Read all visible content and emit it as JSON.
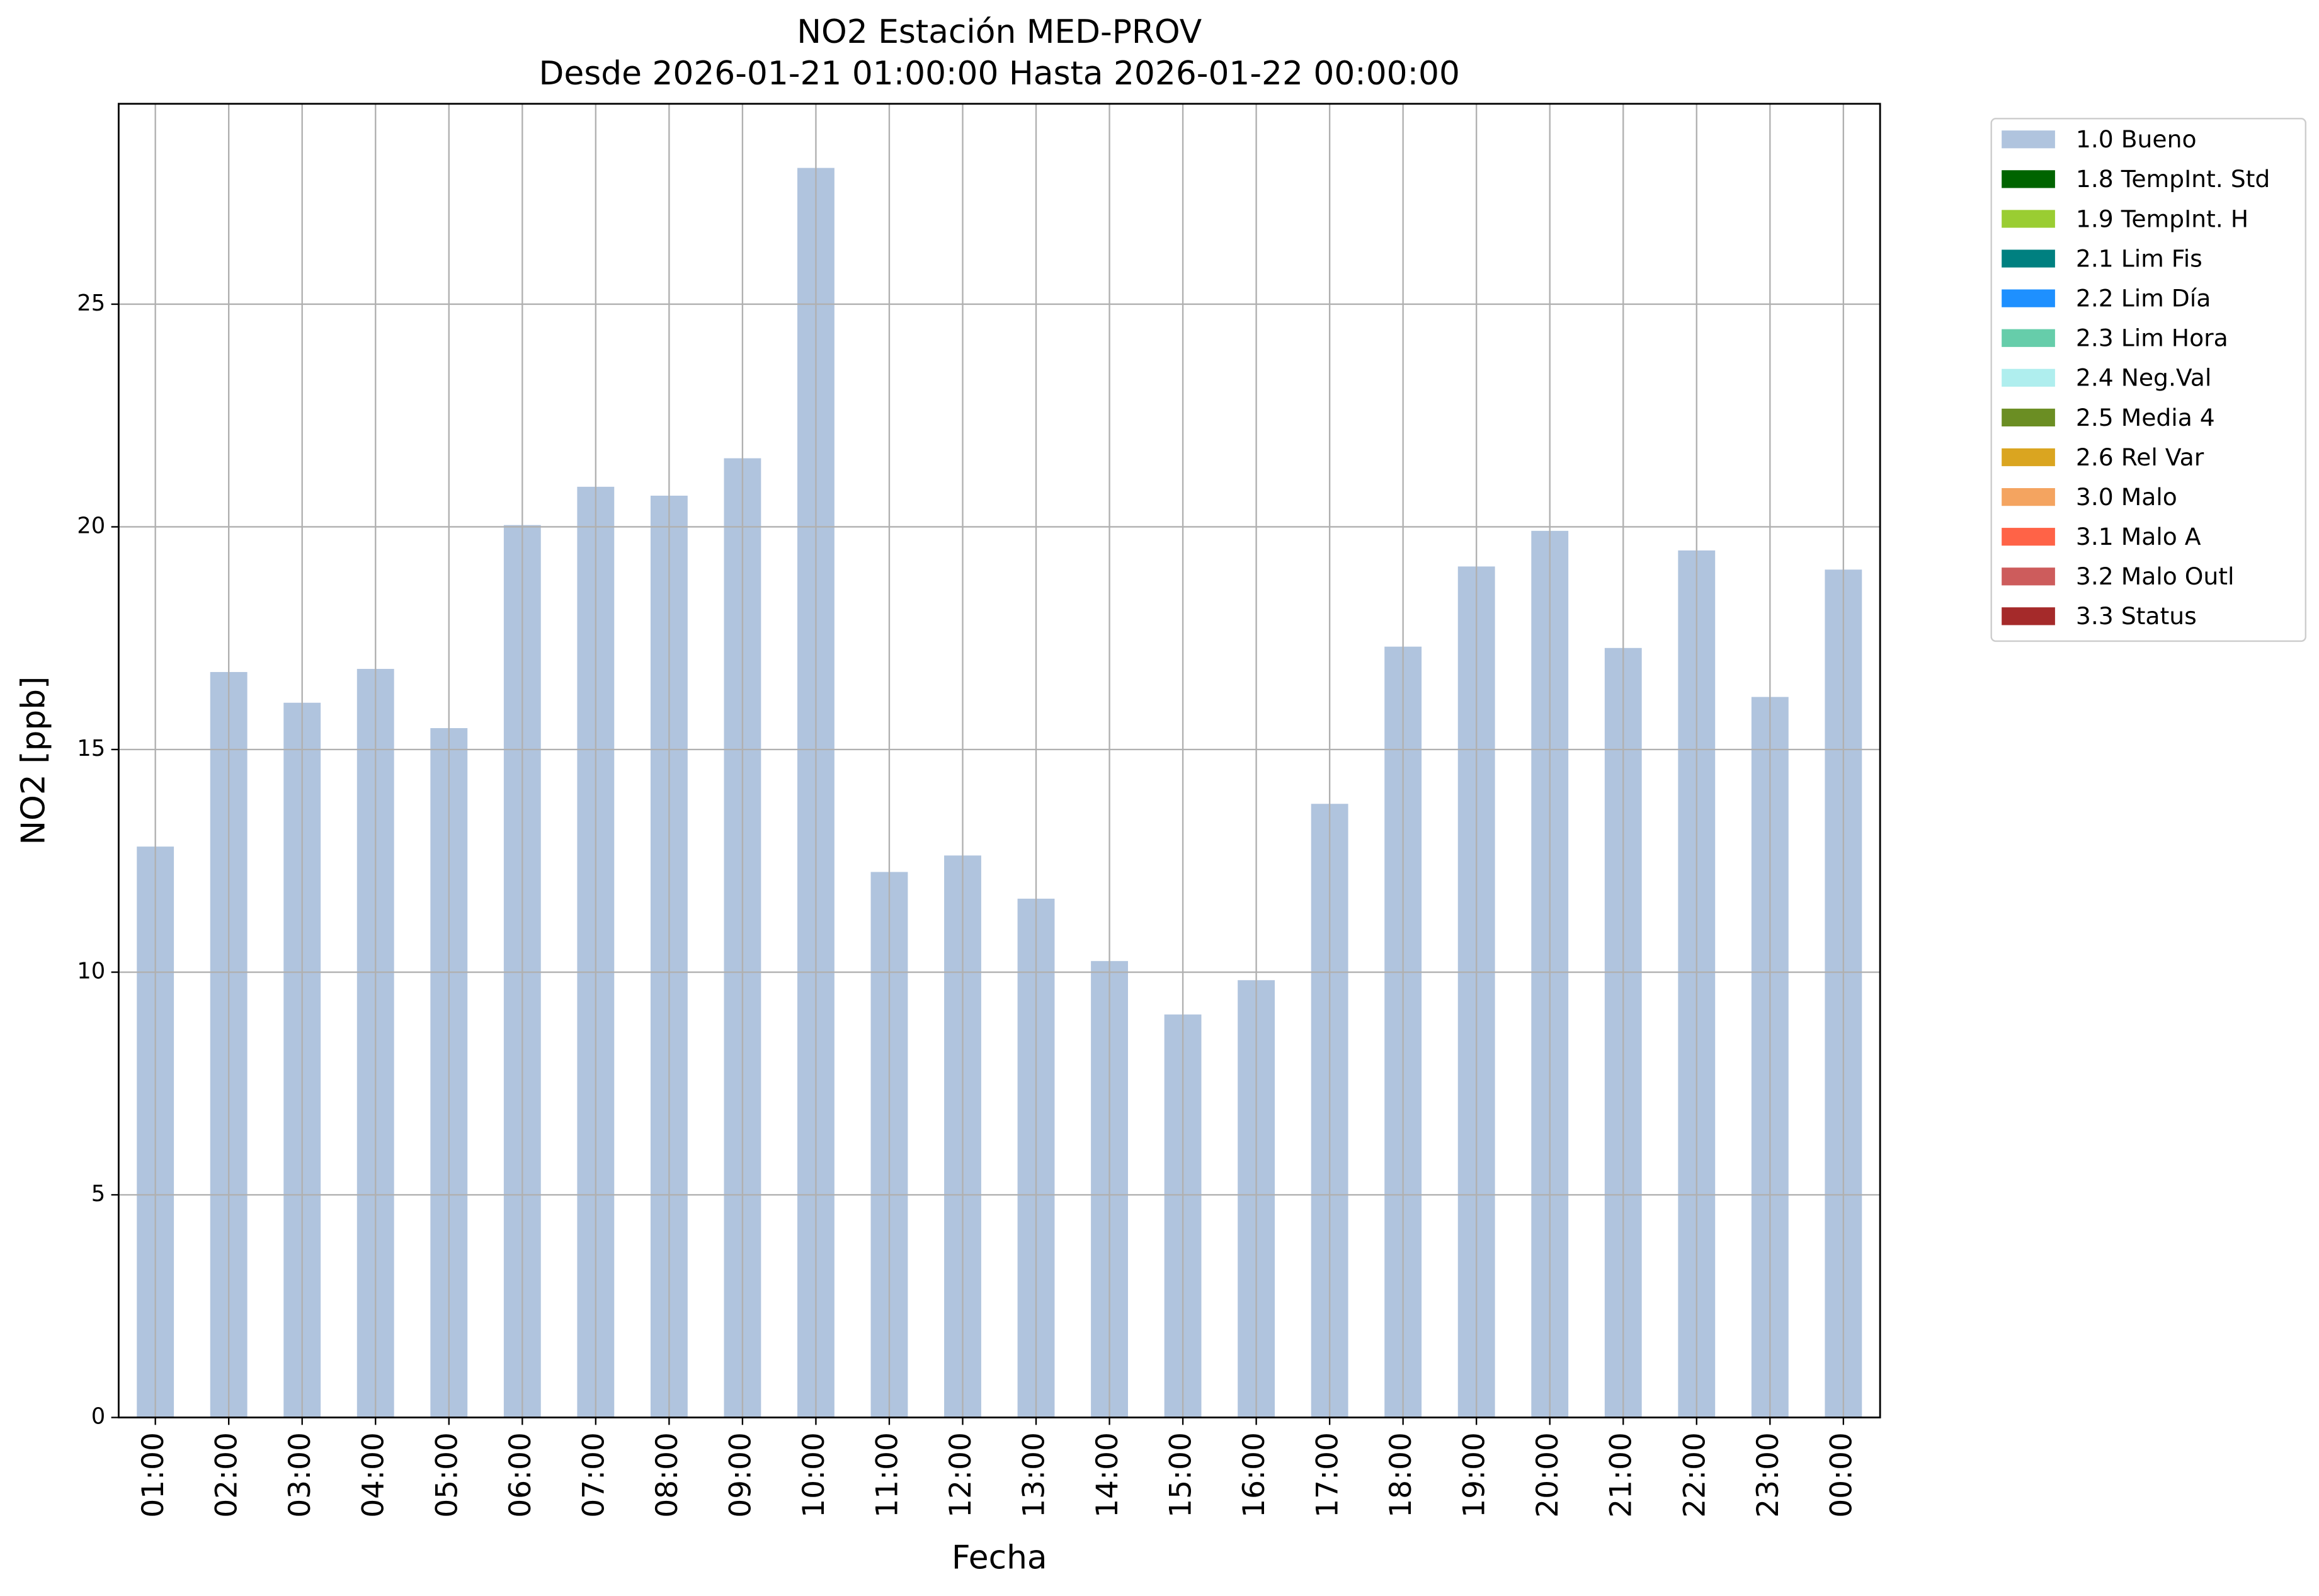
{
  "chart_data": {
    "type": "bar",
    "title": "NO2 Estación MED-PROV",
    "subtitle": "Desde 2026-01-21 01:00:00 Hasta 2026-01-22 00:00:00",
    "xlabel": "Fecha",
    "ylabel": "NO2 [ppb]",
    "categories": [
      "01:00",
      "02:00",
      "03:00",
      "04:00",
      "05:00",
      "06:00",
      "07:00",
      "08:00",
      "09:00",
      "10:00",
      "11:00",
      "12:00",
      "13:00",
      "14:00",
      "15:00",
      "16:00",
      "17:00",
      "18:00",
      "19:00",
      "20:00",
      "21:00",
      "22:00",
      "23:00",
      "00:00"
    ],
    "series": [
      {
        "name": "1.0 Bueno",
        "color": "#b0c4de",
        "values": [
          12.82,
          16.74,
          16.05,
          16.81,
          15.48,
          20.04,
          20.9,
          20.7,
          21.54,
          28.06,
          12.25,
          12.62,
          11.65,
          10.25,
          9.05,
          9.82,
          13.78,
          17.31,
          19.11,
          19.91,
          17.28,
          19.47,
          16.18,
          19.04
        ]
      },
      {
        "name": "1.8 TempInt. Std",
        "color": "#006400"
      },
      {
        "name": "1.9 TempInt. H",
        "color": "#9acd32"
      },
      {
        "name": "2.1 Lim Fis",
        "color": "#008080"
      },
      {
        "name": "2.2 Lim Día",
        "color": "#1e90ff"
      },
      {
        "name": "2.3 Lim Hora",
        "color": "#66cdaa"
      },
      {
        "name": "2.4 Neg.Val",
        "color": "#afeeee"
      },
      {
        "name": "2.5 Media 4",
        "color": "#6b8e23"
      },
      {
        "name": "2.6 Rel Var",
        "color": "#daa520"
      },
      {
        "name": "3.0 Malo",
        "color": "#f4a460"
      },
      {
        "name": "3.1 Malo A",
        "color": "#ff6347"
      },
      {
        "name": "3.2 Malo Outl",
        "color": "#cd5c5c"
      },
      {
        "name": "3.3 Status",
        "color": "#a52a2a"
      }
    ],
    "ylim": [
      0,
      29.5
    ],
    "yticks": [
      0,
      5,
      10,
      15,
      20,
      25
    ],
    "grid": true,
    "stacked": true,
    "legend": "outside-right"
  }
}
